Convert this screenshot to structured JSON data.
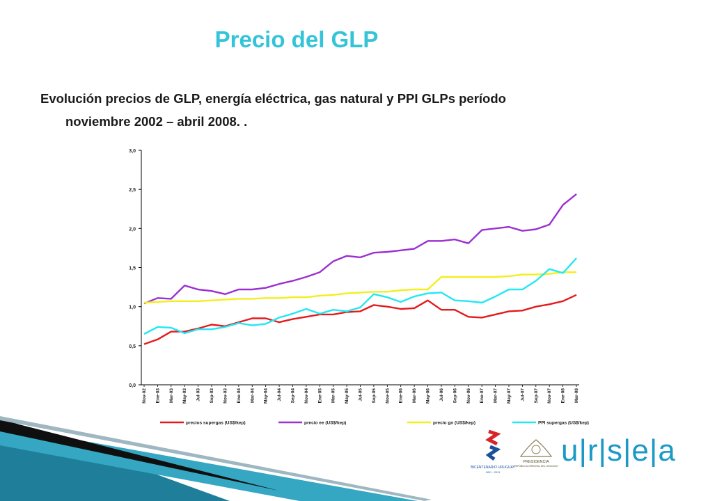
{
  "slide": {
    "title": "Precio del GLP",
    "subtitle_line1": "Evolución precios de GLP, energía eléctrica, gas natural y PPI GLPs período",
    "subtitle_line2": "noviembre 2002 – abril 2008. .",
    "accent_color": "#34c4d8",
    "decor_colors": [
      "#1f7f9a",
      "#36a7c2",
      "#0f0f0f",
      "#9fb7c1"
    ]
  },
  "logos": {
    "left_caption": "BICENTENARIO URUGUAY",
    "left_caption_years": "1811 - 2011",
    "middle_caption": "PRESIDENCIA",
    "middle_caption_sub": "REPÚBLICA ORIENTAL DEL URUGUAY",
    "brand": "u|r|s|e|a",
    "brand_color": "#1b99c7"
  },
  "chart_data": {
    "type": "line",
    "title": "",
    "xlabel": "",
    "ylabel": "",
    "ylim": [
      0,
      3
    ],
    "yticks": [
      "0,0",
      "0,5",
      "1,0",
      "1,5",
      "2,0",
      "2,5",
      "3,0"
    ],
    "grid": false,
    "legend_position": "bottom",
    "x": [
      "Nov-02",
      "Ene-03",
      "Mar-03",
      "May-03",
      "Jul-03",
      "Sep-03",
      "Nov-03",
      "Ene-04",
      "Mar-04",
      "May-04",
      "Jul-04",
      "Sep-04",
      "Nov-04",
      "Ene-05",
      "Mar-05",
      "May-05",
      "Jul-05",
      "Sep-05",
      "Nov-05",
      "Ene-06",
      "Mar-06",
      "May-06",
      "Jul-06",
      "Sep-06",
      "Nov-06",
      "Ene-07",
      "Mar-07",
      "May-07",
      "Jul-07",
      "Sep-07",
      "Nov-07",
      "Ene-08",
      "Mar-08"
    ],
    "series": [
      {
        "name": "precios supergas (US$/kep)",
        "color": "#e41a1c",
        "values": [
          0.52,
          0.58,
          0.68,
          0.68,
          0.72,
          0.77,
          0.75,
          0.8,
          0.85,
          0.85,
          0.8,
          0.84,
          0.87,
          0.9,
          0.9,
          0.93,
          0.94,
          1.02,
          1.0,
          0.97,
          0.98,
          1.08,
          0.96,
          0.96,
          0.87,
          0.86,
          0.9,
          0.94,
          0.95,
          1.0,
          1.03,
          1.07,
          1.15
        ]
      },
      {
        "name": "precio ee (US$/kep)",
        "color": "#9b2fd2",
        "values": [
          1.04,
          1.11,
          1.1,
          1.27,
          1.22,
          1.2,
          1.16,
          1.22,
          1.22,
          1.24,
          1.29,
          1.33,
          1.38,
          1.44,
          1.58,
          1.65,
          1.63,
          1.69,
          1.7,
          1.72,
          1.74,
          1.84,
          1.84,
          1.86,
          1.81,
          1.98,
          2.0,
          2.02,
          1.97,
          1.99,
          2.05,
          2.3,
          2.44
        ]
      },
      {
        "name": "precio gn (US$/kep)",
        "color": "#f2ef1e",
        "values": [
          1.05,
          1.06,
          1.07,
          1.07,
          1.07,
          1.08,
          1.09,
          1.1,
          1.1,
          1.11,
          1.11,
          1.12,
          1.12,
          1.14,
          1.15,
          1.17,
          1.18,
          1.19,
          1.19,
          1.21,
          1.22,
          1.22,
          1.38,
          1.38,
          1.38,
          1.38,
          1.38,
          1.39,
          1.41,
          1.41,
          1.42,
          1.44,
          1.44
        ]
      },
      {
        "name": "PPI supergas (US$/kep)",
        "color": "#22e8f2",
        "values": [
          0.65,
          0.74,
          0.73,
          0.66,
          0.71,
          0.71,
          0.74,
          0.79,
          0.76,
          0.78,
          0.86,
          0.91,
          0.97,
          0.91,
          0.96,
          0.94,
          0.99,
          1.16,
          1.12,
          1.06,
          1.13,
          1.17,
          1.18,
          1.08,
          1.07,
          1.05,
          1.13,
          1.22,
          1.22,
          1.33,
          1.48,
          1.43,
          1.62
        ]
      }
    ]
  }
}
